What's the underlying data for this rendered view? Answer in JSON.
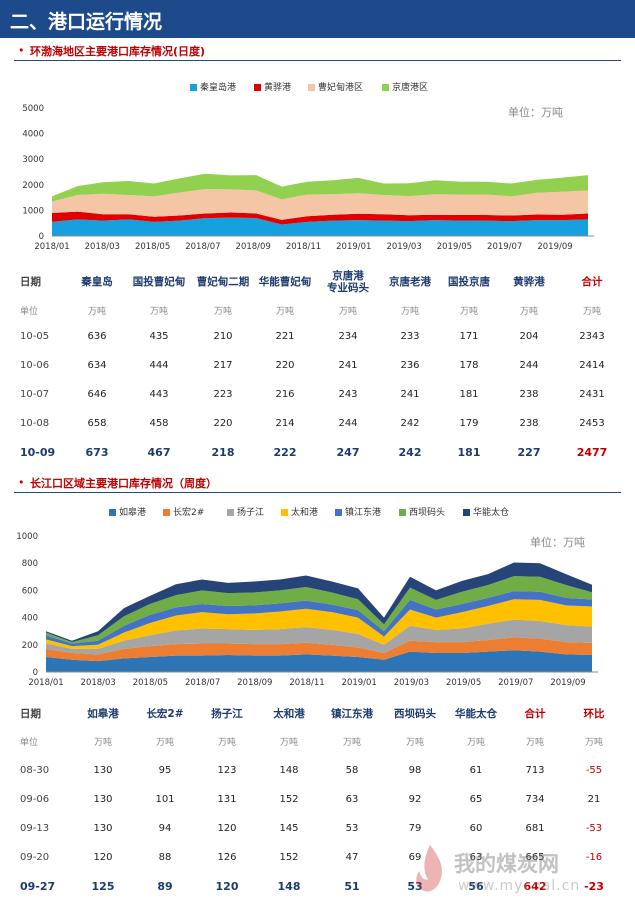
{
  "header": {
    "title": "二、港口运行情况"
  },
  "section1": {
    "title": "环渤海地区主要港口库存情况(日度)"
  },
  "section2": {
    "title": "长江口区域主要港口库存情况（周度）"
  },
  "chart_data": [
    {
      "type": "area",
      "unit_label": "单位：万吨",
      "legend_position": "top",
      "series": [
        {
          "name": "秦皇岛港",
          "color": "#17a0e0"
        },
        {
          "name": "黄骅港",
          "color": "#e00000"
        },
        {
          "name": "曹妃甸港区",
          "color": "#f5c6a5"
        },
        {
          "name": "京唐港区",
          "color": "#92d050"
        }
      ],
      "x_ticks": [
        "2018/01",
        "2018/03",
        "2018/05",
        "2018/07",
        "2018/09",
        "2018/11",
        "2019/01",
        "2019/03",
        "2019/05",
        "2019/07",
        "2019/09"
      ],
      "y_ticks": [
        0,
        1000,
        2000,
        3000,
        4000,
        5000
      ],
      "ylim": [
        0,
        5000
      ],
      "x_points": [
        "2018/01",
        "2018/02",
        "2018/03",
        "2018/04",
        "2018/05",
        "2018/06",
        "2018/07",
        "2018/08",
        "2018/09",
        "2018/10",
        "2018/11",
        "2018/12",
        "2019/01",
        "2019/02",
        "2019/03",
        "2019/04",
        "2019/05",
        "2019/06",
        "2019/07",
        "2019/08",
        "2019/09",
        "2019/10"
      ],
      "stack_values": [
        [
          550,
          650,
          600,
          650,
          550,
          600,
          700,
          720,
          700,
          450,
          550,
          600,
          620,
          600,
          580,
          620,
          600,
          600,
          580,
          620,
          620,
          650
        ],
        [
          350,
          300,
          250,
          200,
          200,
          200,
          180,
          200,
          180,
          180,
          220,
          230,
          250,
          250,
          230,
          210,
          220,
          220,
          220,
          220,
          210,
          230
        ],
        [
          450,
          650,
          800,
          750,
          800,
          900,
          950,
          900,
          900,
          800,
          850,
          800,
          800,
          750,
          750,
          800,
          800,
          800,
          750,
          850,
          900,
          900
        ],
        [
          200,
          350,
          450,
          550,
          500,
          550,
          600,
          550,
          600,
          500,
          500,
          550,
          600,
          450,
          500,
          550,
          500,
          500,
          500,
          500,
          550,
          600
        ]
      ]
    },
    {
      "type": "area",
      "unit_label": "单位：万吨",
      "legend_position": "top",
      "series": [
        {
          "name": "如皋港",
          "color": "#2e75b6"
        },
        {
          "name": "长宏2#",
          "color": "#ed7d31"
        },
        {
          "name": "扬子江",
          "color": "#a5a5a5"
        },
        {
          "name": "太和港",
          "color": "#ffc000"
        },
        {
          "name": "镇江东港",
          "color": "#4472c4"
        },
        {
          "name": "西坝码头",
          "color": "#70ad47"
        },
        {
          "name": "华能太仓",
          "color": "#264478"
        }
      ],
      "x_ticks": [
        "2018/01",
        "2018/03",
        "2018/05",
        "2018/07",
        "2018/09",
        "2018/11",
        "2019/01",
        "2019/03",
        "2019/05",
        "2019/07",
        "2019/09"
      ],
      "y_ticks": [
        0,
        200,
        400,
        600,
        800,
        1000
      ],
      "ylim": [
        0,
        1000
      ],
      "x_points": [
        "2018/01",
        "2018/02",
        "2018/03",
        "2018/04",
        "2018/05",
        "2018/06",
        "2018/07",
        "2018/08",
        "2018/09",
        "2018/10",
        "2018/11",
        "2018/12",
        "2019/01",
        "2019/02",
        "2019/03",
        "2019/04",
        "2019/05",
        "2019/06",
        "2019/07",
        "2019/08",
        "2019/09",
        "2019/10"
      ],
      "stack_values": [
        [
          110,
          90,
          80,
          100,
          110,
          120,
          120,
          125,
          120,
          120,
          130,
          120,
          110,
          90,
          150,
          140,
          140,
          150,
          160,
          150,
          130,
          125
        ],
        [
          60,
          50,
          50,
          70,
          80,
          85,
          90,
          85,
          85,
          85,
          85,
          80,
          70,
          50,
          80,
          80,
          80,
          85,
          95,
          95,
          90,
          89
        ],
        [
          40,
          30,
          40,
          60,
          80,
          100,
          110,
          105,
          105,
          110,
          115,
          110,
          100,
          60,
          110,
          90,
          100,
          120,
          130,
          130,
          125,
          120
        ],
        [
          30,
          20,
          30,
          60,
          90,
          110,
          120,
          110,
          120,
          130,
          135,
          130,
          120,
          60,
          120,
          90,
          120,
          130,
          150,
          155,
          145,
          148
        ],
        [
          30,
          20,
          30,
          50,
          60,
          60,
          60,
          60,
          60,
          60,
          60,
          55,
          55,
          40,
          70,
          60,
          60,
          60,
          60,
          60,
          55,
          51
        ],
        [
          20,
          10,
          40,
          70,
          80,
          90,
          100,
          95,
          95,
          95,
          100,
          90,
          80,
          50,
          90,
          70,
          90,
          95,
          110,
          110,
          95,
          53
        ],
        [
          10,
          10,
          30,
          60,
          60,
          80,
          80,
          75,
          80,
          80,
          85,
          80,
          80,
          50,
          80,
          70,
          80,
          80,
          100,
          100,
          80,
          56
        ]
      ]
    }
  ],
  "table1": {
    "headers": [
      "日期",
      "秦皇岛",
      "国投曹妃甸",
      "曹妃甸二期",
      "华能曹妃甸",
      "京唐港专业码头",
      "京唐老港",
      "国投京唐",
      "黄骅港",
      "合计"
    ],
    "header_lines": [
      [
        "日期"
      ],
      [
        "秦皇岛"
      ],
      [
        "国投曹妃甸"
      ],
      [
        "曹妃甸二期"
      ],
      [
        "华能曹妃甸"
      ],
      [
        "京唐港",
        "专业码头"
      ],
      [
        "京唐老港"
      ],
      [
        "国投京唐"
      ],
      [
        "黄骅港"
      ],
      [
        "合计"
      ]
    ],
    "units": [
      "单位",
      "万吨",
      "万吨",
      "万吨",
      "万吨",
      "万吨",
      "万吨",
      "万吨",
      "万吨",
      "万吨"
    ],
    "rows": [
      [
        "10-05",
        "636",
        "435",
        "210",
        "221",
        "234",
        "233",
        "171",
        "204",
        "2343"
      ],
      [
        "10-06",
        "634",
        "444",
        "217",
        "220",
        "241",
        "236",
        "178",
        "244",
        "2414"
      ],
      [
        "10-07",
        "646",
        "443",
        "223",
        "216",
        "243",
        "241",
        "181",
        "238",
        "2431"
      ],
      [
        "10-08",
        "658",
        "458",
        "220",
        "214",
        "244",
        "242",
        "179",
        "238",
        "2453"
      ],
      [
        "10-09",
        "673",
        "467",
        "218",
        "222",
        "247",
        "242",
        "181",
        "227",
        "2477"
      ]
    ]
  },
  "table2": {
    "headers": [
      "日期",
      "如皋港",
      "长宏2#",
      "扬子江",
      "太和港",
      "镇江东港",
      "西坝码头",
      "华能太仓",
      "合计",
      "环比"
    ],
    "units": [
      "单位",
      "万吨",
      "万吨",
      "万吨",
      "万吨",
      "万吨",
      "万吨",
      "万吨",
      "万吨",
      "万吨"
    ],
    "rows": [
      [
        "08-30",
        "130",
        "95",
        "123",
        "148",
        "58",
        "98",
        "61",
        "713",
        "-55"
      ],
      [
        "09-06",
        "130",
        "101",
        "131",
        "152",
        "63",
        "92",
        "65",
        "734",
        "21"
      ],
      [
        "09-13",
        "130",
        "94",
        "120",
        "145",
        "53",
        "79",
        "60",
        "681",
        "-53"
      ],
      [
        "09-20",
        "120",
        "88",
        "126",
        "152",
        "47",
        "69",
        "63",
        "665",
        "-16"
      ],
      [
        "09-27",
        "125",
        "89",
        "120",
        "148",
        "51",
        "53",
        "56",
        "642",
        "-23"
      ]
    ]
  },
  "watermark": {
    "name": "我的煤炭网",
    "url": "www.mycoal.cn"
  }
}
